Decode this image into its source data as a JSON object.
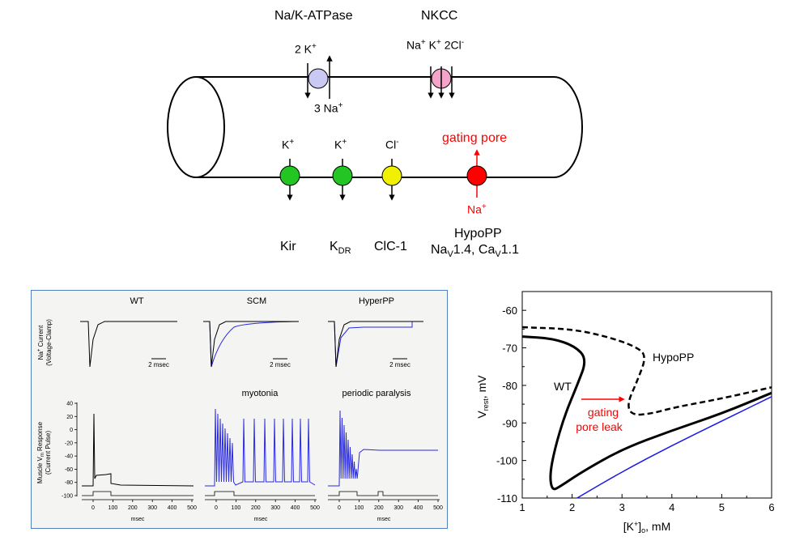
{
  "top": {
    "pump_label": "Na/K-ATPase",
    "pump_k": "2 K",
    "pump_na": "3 Na",
    "nkcc_label": "NKCC",
    "nkcc_ions": "Na",
    "nkcc_k": "K",
    "nkcc_cl": "2Cl",
    "kir_ion": "K",
    "kdr_ion": "K",
    "clc_ion": "Cl",
    "gating_pore": "gating pore",
    "gp_na": "Na",
    "kir": "Kir",
    "kdr_main": "K",
    "kdr_sub": "DR",
    "clc": "ClC-1",
    "hypopp": "HypoPP",
    "hypopp_line2a": "Na",
    "hypopp_line2b": "1.4, Ca",
    "hypopp_line2c": "1.1",
    "sub_v": "V",
    "plus": "+",
    "minus": "-"
  },
  "panel": {
    "col_titles": [
      "WT",
      "SCM",
      "HyperPP"
    ],
    "scale_bar": "2 msec",
    "ylabel_top_1": "Na",
    "ylabel_top_2": " Current",
    "ylabel_top_3": "(Voltage-Clamp)",
    "ylabel_bot_1": "Muscle V",
    "ylabel_bot_2": " Response",
    "ylabel_bot_3": "(Current Pulse)",
    "myotonia": "myotonia",
    "periodic": "periodic paralysis",
    "yticks": [
      "40",
      "20",
      "0",
      "-20",
      "-40",
      "-60",
      "-80",
      "-100"
    ],
    "xticks": [
      "0",
      "100",
      "200",
      "300",
      "400",
      "500"
    ],
    "xlabel": "msec"
  },
  "chart_data": {
    "type": "line",
    "title": "",
    "xlabel": "[K+]o, mM",
    "ylabel": "Vrest, mV",
    "xlim": [
      1,
      6
    ],
    "ylim": [
      -110,
      -55
    ],
    "x_ticks": [
      "1",
      "2",
      "3",
      "4",
      "5",
      "6"
    ],
    "y_ticks": [
      "-60",
      "-70",
      "-80",
      "-90",
      "-100",
      "-110"
    ],
    "annotations": [
      "WT",
      "HypoPP",
      "gating pore leak"
    ],
    "series": [
      {
        "name": "WT",
        "style": "solid-black",
        "points": [
          [
            1,
            -67
          ],
          [
            1.6,
            -67.5
          ],
          [
            2.05,
            -69.5
          ],
          [
            2.3,
            -73
          ],
          [
            2.1,
            -80
          ],
          [
            1.85,
            -88
          ],
          [
            1.65,
            -97
          ],
          [
            1.55,
            -104
          ],
          [
            1.6,
            -108
          ],
          [
            1.75,
            -107
          ],
          [
            2.2,
            -103
          ],
          [
            3,
            -97
          ],
          [
            4,
            -92
          ],
          [
            5,
            -87.5
          ],
          [
            6,
            -82
          ]
        ]
      },
      {
        "name": "HypoPP",
        "style": "dashed-black",
        "points": [
          [
            1,
            -64.5
          ],
          [
            2,
            -65
          ],
          [
            2.7,
            -67
          ],
          [
            3.25,
            -69.5
          ],
          [
            3.5,
            -72
          ],
          [
            3.3,
            -79
          ],
          [
            3.1,
            -85
          ],
          [
            3.2,
            -88
          ],
          [
            3.6,
            -87.5
          ],
          [
            4,
            -86
          ],
          [
            5,
            -83.5
          ],
          [
            6,
            -80.5
          ]
        ]
      },
      {
        "name": "",
        "style": "solid-blue",
        "points": [
          [
            2.1,
            -110
          ],
          [
            3,
            -103
          ],
          [
            4,
            -96
          ],
          [
            5,
            -89.5
          ],
          [
            6,
            -83
          ]
        ]
      }
    ]
  }
}
